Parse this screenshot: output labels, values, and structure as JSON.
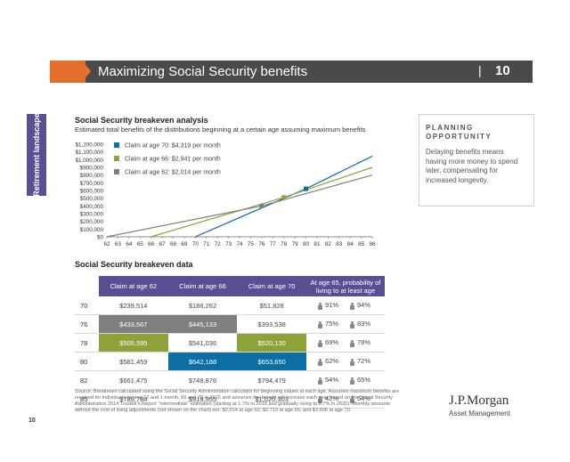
{
  "header": {
    "title": "Maximizing Social Security benefits",
    "separator": "|",
    "page_number": "10"
  },
  "side_tab": "Retirement landscape",
  "chart_section": {
    "title": "Social Security breakeven analysis",
    "subtitle": "Estimated total benefits of the distributions beginning at a certain age assuming maximum benefits"
  },
  "chart_data": {
    "type": "line",
    "x_ticks": [
      62,
      63,
      64,
      65,
      66,
      67,
      68,
      69,
      70,
      71,
      72,
      73,
      74,
      75,
      76,
      77,
      78,
      79,
      80,
      81,
      82,
      83,
      84,
      85,
      86
    ],
    "y_ticks": [
      "$0",
      "$100,000",
      "$200,000",
      "$300,000",
      "$400,000",
      "$500,000",
      "$600,000",
      "$700,000",
      "$800,000",
      "$900,000",
      "$1,000,000",
      "$1,100,000",
      "$1,200,000"
    ],
    "xlim": [
      62,
      86
    ],
    "ylim": [
      0,
      1200000
    ],
    "series": [
      {
        "name": "Claim at age 70: $4,319 per month",
        "color": "#0b6ea5",
        "x": [
          70,
          80,
          86
        ],
        "y": [
          0,
          622000,
          1045000
        ],
        "marker_x": 80,
        "marker_y": 622000
      },
      {
        "name": "Claim at age 66: $2,941 per month",
        "color": "#8ea23a",
        "x": [
          66,
          78,
          86
        ],
        "y": [
          0,
          510000,
          900000
        ],
        "marker_x": 78,
        "marker_y": 510000
      },
      {
        "name": "Claim at age 62: $2,014 per month",
        "color": "#7f7f7f",
        "x": [
          62,
          76,
          86
        ],
        "y": [
          0,
          400000,
          800000
        ],
        "marker_x": 76,
        "marker_y": 400000
      }
    ],
    "legend_position": "top-left",
    "grid": false
  },
  "planning": {
    "heading": "PLANNING OPPORTUNITY",
    "body": "Delaying benefits means having more money to spend later, compensating for increased longevity."
  },
  "table_section": {
    "title": "Social Security breakeven data",
    "headers": [
      "Claim at age 62",
      "Claim at age 66",
      "Claim at age 70",
      "At age 65, probability of living to at least age"
    ],
    "rows": [
      {
        "age": "70",
        "c62": "$239,514",
        "c66": "$186,262",
        "c70": "$51,828",
        "p1": "91%",
        "p2": "94%",
        "hl": [
          "",
          "",
          ""
        ]
      },
      {
        "age": "76",
        "c62": "$433,667",
        "c66": "$445,133",
        "c70": "$393,538",
        "p1": "75%",
        "p2": "83%",
        "hl": [
          "g",
          "g",
          ""
        ]
      },
      {
        "age": "78",
        "c62": "$505,595",
        "c66": "$541,036",
        "c70": "$520,130",
        "p1": "69%",
        "p2": "78%",
        "hl": [
          "o",
          "",
          "o"
        ]
      },
      {
        "age": "80",
        "c62": "$581,459",
        "c66": "$642,188",
        "c70": "$653,650",
        "p1": "62%",
        "p2": "72%",
        "hl": [
          "",
          "b",
          "b"
        ]
      },
      {
        "age": "82",
        "c62": "$661,475",
        "c66": "$748,876",
        "c70": "$794,479",
        "p1": "54%",
        "p2": "65%",
        "hl": [
          "",
          "",
          ""
        ]
      },
      {
        "age": "85",
        "c62": "$789,784",
        "c66": "$919,955",
        "c70": "$1,020,303",
        "p1": "42%",
        "p2": "54%",
        "hl": [
          "",
          "",
          ""
        ]
      }
    ]
  },
  "footnote": "Source: Breakeven calculated using the Social Security Administration calculator for beginning values at each age. Assumes maximum benefits are received for individuals turning 62 and 1 month, 66 and 70 in 2015 and assumes the benefit will increase each year based on the Social Security Administration 2014 Trustee's Report \"intermediate\" estimates (starting at 1.7% in 2015 and gradually rising to 2.7% in 2020). Monthly amounts without the cost of living adjustments (not shown on the chart) are: $2,014 at age 62; $2,713 at age 66; and $3,606 at age 70.",
  "footer": {
    "page_number": "10",
    "logo_main": "J.P.Morgan",
    "logo_sub": "Asset Management"
  },
  "colors": {
    "purple": "#5b4f94",
    "orange": "#e46f2a",
    "header_gray": "#4a4a4a",
    "blue": "#0b6ea5",
    "green": "#8ea23a",
    "gray": "#7f7f7f"
  }
}
